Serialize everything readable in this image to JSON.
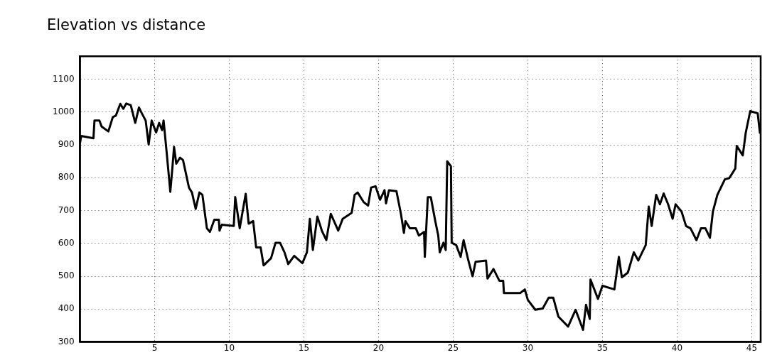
{
  "chart_data": {
    "type": "line",
    "title": "Elevation vs distance",
    "x": [
      0.0,
      0.08,
      0.9,
      0.97,
      1.3,
      1.45,
      1.9,
      2.2,
      2.4,
      2.7,
      2.9,
      3.1,
      3.4,
      3.7,
      3.95,
      4.1,
      4.4,
      4.6,
      4.8,
      5.1,
      5.3,
      5.5,
      5.6,
      5.8,
      6.05,
      6.2,
      6.3,
      6.45,
      6.7,
      6.9,
      7.3,
      7.5,
      7.75,
      8.0,
      8.2,
      8.5,
      8.7,
      9.0,
      9.3,
      9.35,
      9.5,
      10.3,
      10.4,
      10.7,
      11.1,
      11.3,
      11.6,
      11.8,
      12.1,
      12.3,
      12.8,
      13.1,
      13.4,
      13.7,
      13.95,
      14.35,
      14.9,
      15.2,
      15.4,
      15.6,
      15.9,
      16.2,
      16.5,
      16.8,
      17.3,
      17.6,
      18.2,
      18.4,
      18.6,
      19.0,
      19.3,
      19.5,
      19.8,
      20.1,
      20.4,
      20.5,
      20.7,
      21.2,
      21.5,
      21.7,
      21.8,
      22.1,
      22.5,
      22.7,
      23.05,
      23.1,
      23.3,
      23.5,
      23.8,
      24.0,
      24.1,
      24.35,
      24.5,
      24.6,
      24.85,
      24.9,
      25.2,
      25.5,
      25.7,
      26.0,
      26.3,
      26.5,
      27.2,
      27.3,
      27.7,
      28.1,
      28.35,
      28.4,
      29.5,
      29.8,
      30.0,
      30.5,
      31.0,
      31.4,
      31.7,
      32.05,
      32.7,
      33.2,
      33.7,
      33.9,
      34.15,
      34.2,
      34.7,
      35.0,
      35.8,
      36.1,
      36.3,
      36.7,
      37.1,
      37.4,
      37.9,
      38.1,
      38.3,
      38.6,
      38.85,
      39.1,
      39.4,
      39.7,
      39.9,
      40.3,
      40.6,
      40.9,
      41.3,
      41.6,
      41.9,
      42.2,
      42.4,
      42.7,
      43.2,
      43.5,
      43.9,
      44.0,
      44.4,
      44.6,
      44.9,
      45.4,
      45.55
    ],
    "series": [
      {
        "color": "#000000",
        "values": [
          905,
          927,
          920,
          974,
          974,
          956,
          941,
          985,
          989,
          1025,
          1010,
          1026,
          1021,
          967,
          1014,
          1000,
          974,
          901,
          974,
          938,
          967,
          945,
          974,
          880,
          757,
          836,
          894,
          843,
          861,
          854,
          770,
          755,
          705,
          755,
          748,
          646,
          635,
          672,
          672,
          639,
          657,
          653,
          741,
          646,
          751,
          660,
          668,
          588,
          588,
          533,
          555,
          602,
          602,
          573,
          537,
          562,
          540,
          573,
          675,
          580,
          682,
          639,
          610,
          690,
          639,
          675,
          693,
          748,
          755,
          726,
          715,
          770,
          774,
          733,
          762,
          722,
          762,
          759,
          690,
          632,
          668,
          646,
          646,
          624,
          635,
          559,
          741,
          741,
          668,
          624,
          573,
          602,
          580,
          850,
          835,
          602,
          595,
          559,
          610,
          551,
          500,
          544,
          548,
          493,
          522,
          486,
          486,
          449,
          449,
          460,
          428,
          398,
          402,
          435,
          435,
          377,
          347,
          398,
          337,
          413,
          370,
          490,
          431,
          471,
          460,
          559,
          497,
          511,
          573,
          548,
          595,
          712,
          653,
          748,
          719,
          752,
          719,
          675,
          719,
          697,
          653,
          646,
          610,
          646,
          646,
          617,
          697,
          748,
          795,
          799,
          828,
          897,
          868,
          937,
          1003,
          996,
          937
        ]
      }
    ],
    "xlim": [
      0,
      45.6
    ],
    "ylim": [
      300,
      1170
    ],
    "xticks": [
      5,
      10,
      15,
      20,
      25,
      30,
      35,
      40,
      45
    ],
    "yticks": [
      300,
      400,
      500,
      600,
      700,
      800,
      900,
      1000,
      1100
    ],
    "grid": true
  }
}
